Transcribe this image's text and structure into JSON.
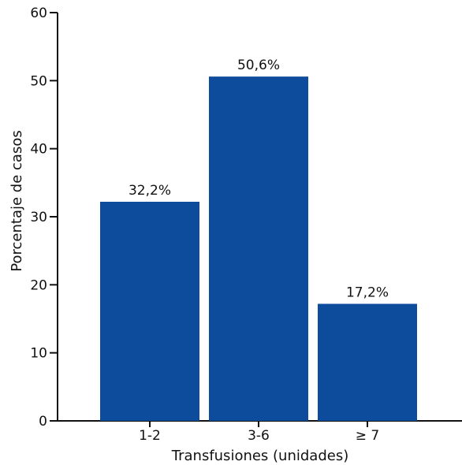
{
  "chart_data": {
    "type": "bar",
    "title": "",
    "xlabel": "Transfusiones (unidades)",
    "ylabel": "Porcentaje de casos",
    "categories": [
      "1-2",
      "3-6",
      "≥ 7"
    ],
    "values": [
      32.2,
      50.6,
      17.2
    ],
    "data_labels": [
      "32,2%",
      "50,6%",
      "17,2%"
    ],
    "ylim": [
      0,
      60
    ],
    "yticks": [
      0,
      10,
      20,
      30,
      40,
      50,
      60
    ],
    "grid": false,
    "bar_color": "#0D4C9C",
    "axis_color": "#111111"
  }
}
